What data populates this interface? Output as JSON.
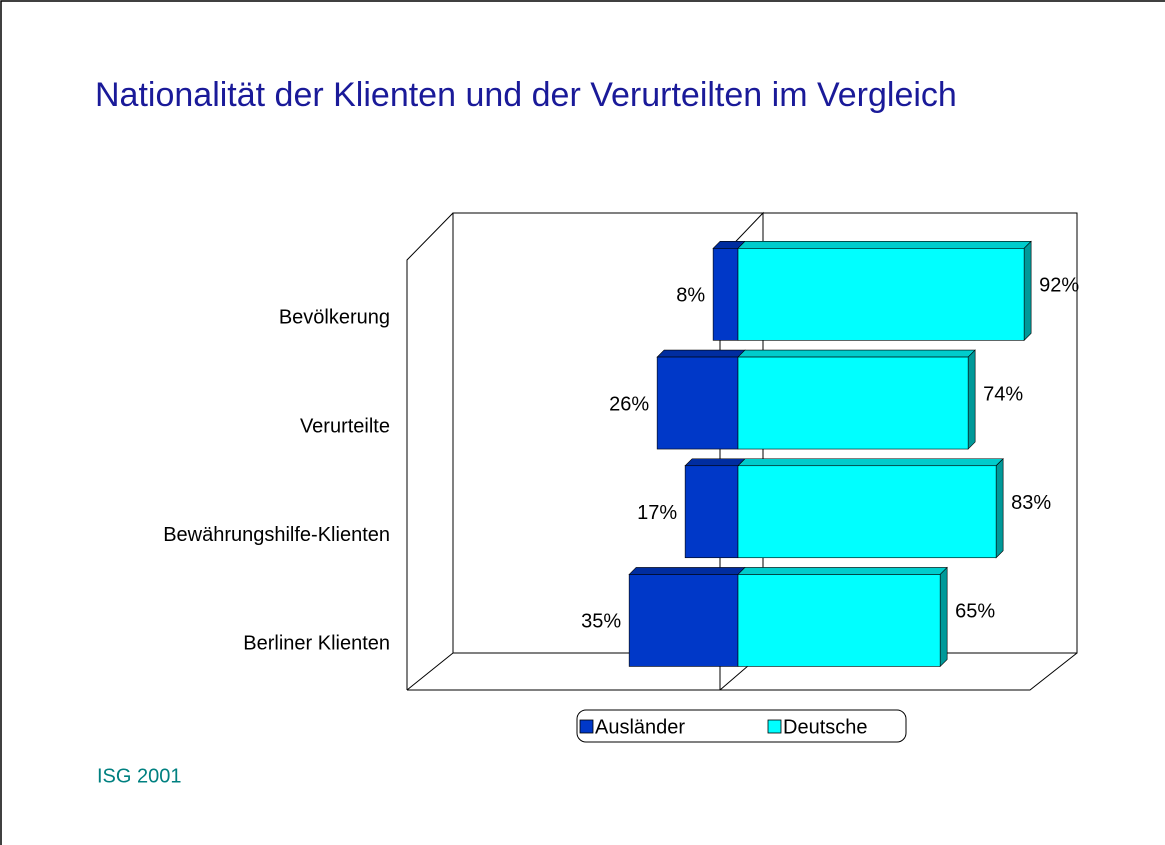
{
  "chart_data": {
    "type": "bar",
    "title": "Nationalität der Klienten und der Verurteilten im Vergleich",
    "source": "ISG 2001",
    "categories": [
      "Bevölkerung",
      "Verurteilte",
      "Bewährungshilfe-Klienten",
      "Berliner Klienten"
    ],
    "series": [
      {
        "name": "Ausländer",
        "color": "#0038c8",
        "values": [
          8,
          26,
          17,
          35
        ],
        "value_labels": [
          "8%",
          "26%",
          "17%",
          "35%"
        ]
      },
      {
        "name": "Deutsche",
        "color": "#00ffff",
        "values": [
          92,
          74,
          83,
          65
        ],
        "value_labels": [
          "92%",
          "74%",
          "83%",
          "65%"
        ]
      }
    ],
    "xlim": [
      -100,
      100
    ],
    "legend": "bottom"
  }
}
